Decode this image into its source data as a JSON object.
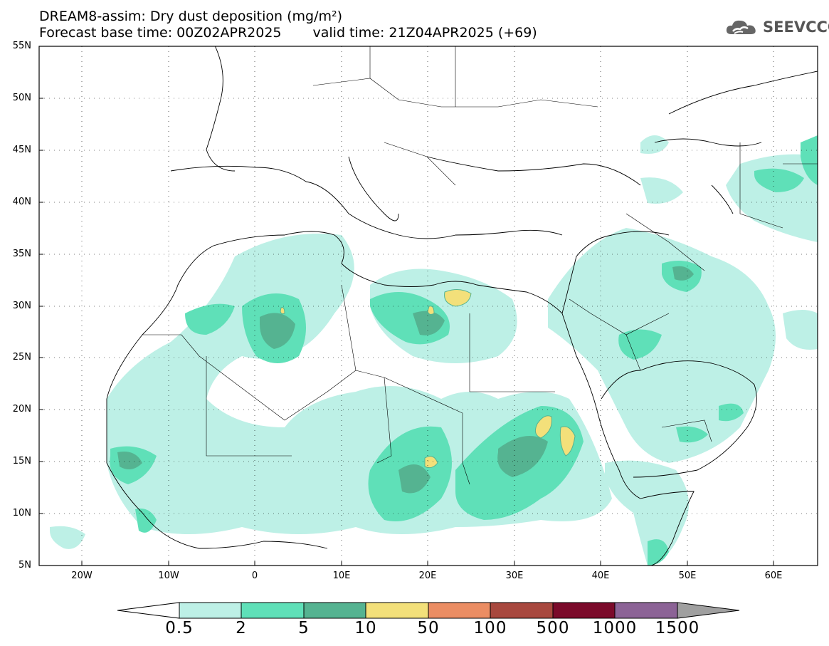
{
  "title": {
    "line1": "DREAM8-assim: Dry dust deposition (mg/m²)",
    "line2_base": "Forecast base time: 00Z02APR2025",
    "line2_valid": "valid time: 21Z04APR2025 (+69)"
  },
  "logo": {
    "text": "SEEVCCC",
    "icon": "cloud-icon"
  },
  "map": {
    "lon_range": [
      -25,
      65
    ],
    "lat_range": [
      5,
      55
    ],
    "lat_labels": [
      "55N",
      "50N",
      "45N",
      "40N",
      "35N",
      "30N",
      "25N",
      "20N",
      "15N",
      "10N",
      "5N"
    ],
    "lon_labels": [
      "20W",
      "10W",
      "0",
      "10E",
      "20E",
      "30E",
      "40E",
      "50E",
      "60E"
    ]
  },
  "colorbar": {
    "levels": [
      "0.5",
      "2",
      "5",
      "10",
      "50",
      "100",
      "500",
      "1000",
      "1500"
    ],
    "colors": [
      "#ffffff",
      "#bdf0e6",
      "#5fe0b8",
      "#55b391",
      "#f3e07a",
      "#eb8d63",
      "#a8483e",
      "#7b0a2a",
      "#8c6396",
      "#a0a0a0"
    ]
  }
}
